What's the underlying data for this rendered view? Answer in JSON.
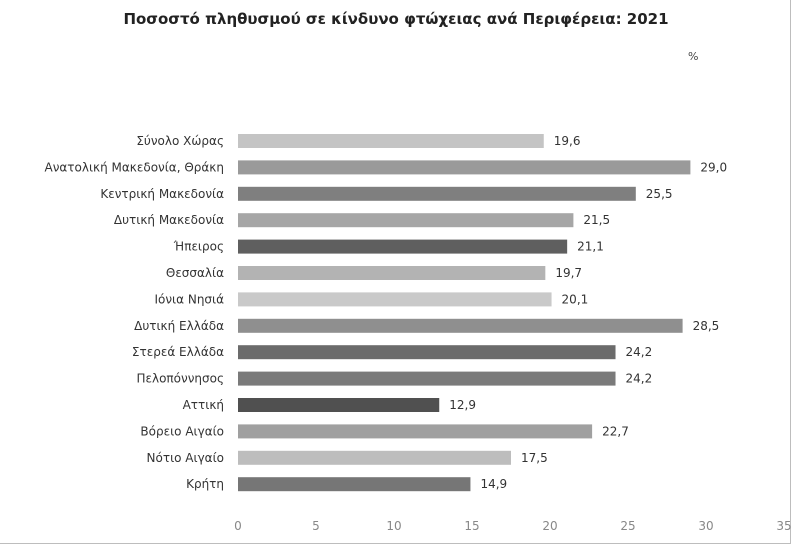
{
  "chart_data": {
    "type": "bar",
    "orientation": "horizontal",
    "title": "Ποσοστό πληθυσμού σε κίνδυνο φτώχειας ανά Περιφέρεια: 2021",
    "unit_label": "%",
    "categories": [
      "Σύνολο Χώρας",
      "Ανατολική Μακεδονία, Θράκη",
      "Κεντρική Μακεδονία",
      "Δυτική Μακεδονία",
      "Ήπειρος",
      "Θεσσαλία",
      "Ιόνια Νησιά",
      "Δυτική Ελλάδα",
      "Στερεά Ελλάδα",
      "Πελοπόννησος",
      "Αττική",
      "Βόρειο Αιγαίο",
      "Νότιο Αιγαίο",
      "Κρήτη"
    ],
    "values": [
      19.6,
      29.0,
      25.5,
      21.5,
      21.1,
      19.7,
      20.1,
      28.5,
      24.2,
      24.2,
      12.9,
      22.7,
      17.5,
      14.9
    ],
    "value_labels": [
      "19,6",
      "29,0",
      "25,5",
      "21,5",
      "21,1",
      "19,7",
      "20,1",
      "28,5",
      "24,2",
      "24,2",
      "12,9",
      "22,7",
      "17,5",
      "14,9"
    ],
    "bar_colors": [
      "#c4c4c4",
      "#9a9a9a",
      "#7f7f7f",
      "#a6a6a6",
      "#5f5f5f",
      "#b3b3b3",
      "#c9c9c9",
      "#8f8f8f",
      "#6b6b6b",
      "#7a7a7a",
      "#505050",
      "#a0a0a0",
      "#bdbdbd",
      "#767676"
    ],
    "xlim": [
      0,
      35
    ],
    "xticks": [
      0,
      5,
      10,
      15,
      20,
      25,
      30,
      35
    ],
    "grid": false,
    "legend": "none"
  }
}
